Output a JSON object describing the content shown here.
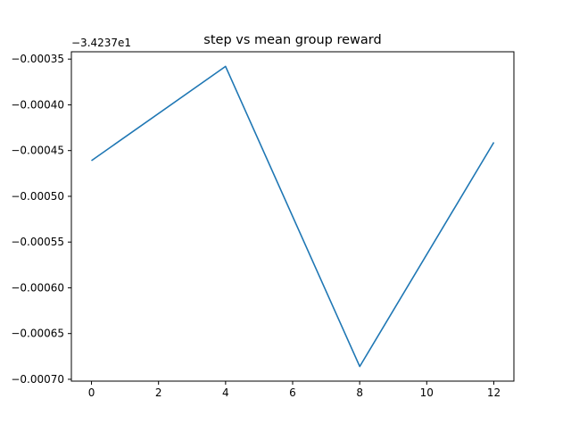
{
  "chart_data": {
    "type": "line",
    "title": "step vs mean group reward",
    "offset_label": "−3.4237e1",
    "xlabel": "",
    "ylabel": "",
    "x": [
      0,
      4,
      8,
      12
    ],
    "series": [
      {
        "name": "",
        "color": "#1f77b4",
        "values": [
          -0.000461,
          -0.000358,
          -0.000686,
          -0.000441
        ]
      }
    ],
    "x_ticks": [
      0,
      2,
      4,
      6,
      8,
      10,
      12
    ],
    "x_tick_labels": [
      "0",
      "2",
      "4",
      "6",
      "8",
      "10",
      "12"
    ],
    "y_ticks": [
      -0.00035,
      -0.0004,
      -0.00045,
      -0.0005,
      -0.00055,
      -0.0006,
      -0.00065,
      -0.0007
    ],
    "y_tick_labels": [
      "−0.00035",
      "−0.00040",
      "−0.00045",
      "−0.00050",
      "−0.00055",
      "−0.00060",
      "−0.00065",
      "−0.00070"
    ],
    "xlim": [
      -0.6,
      12.6
    ],
    "ylim": [
      -0.000702,
      -0.000342
    ],
    "grid": false,
    "legend": "none"
  }
}
